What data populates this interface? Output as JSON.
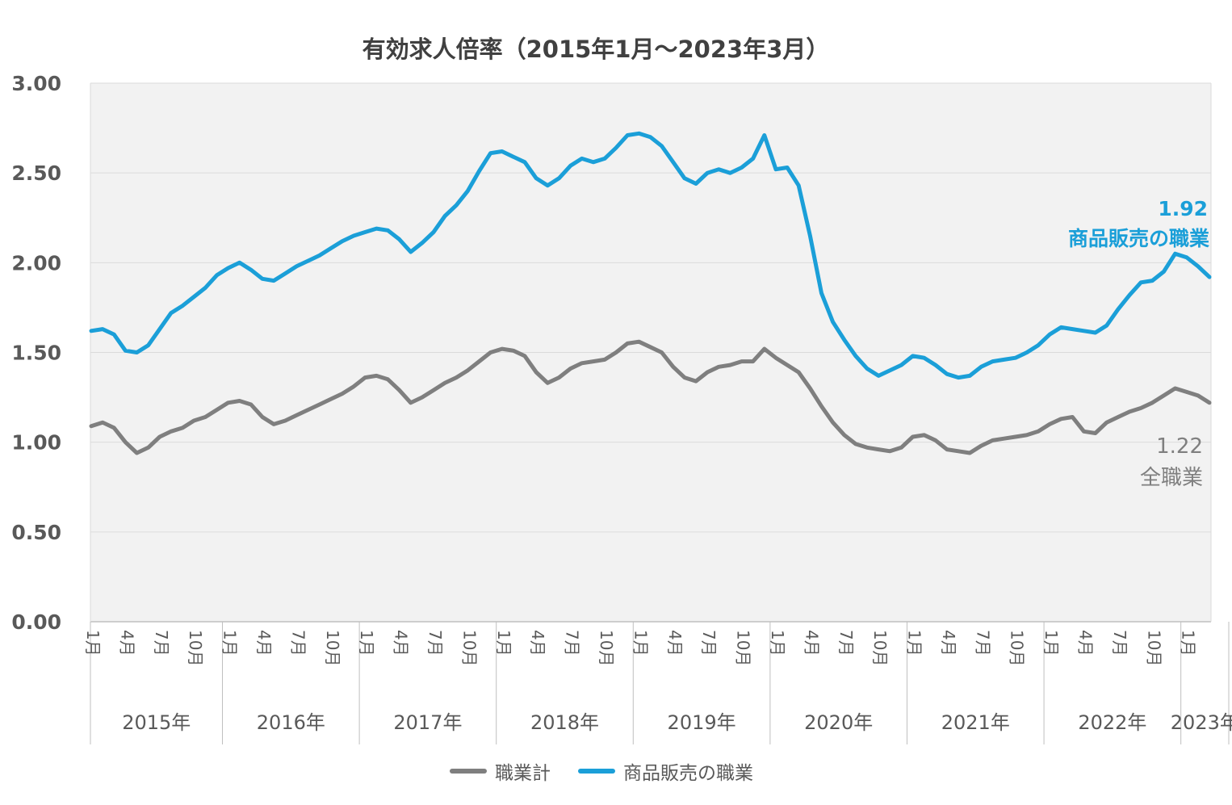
{
  "title": "有効求人倍率（2015年1月～2023年3月）",
  "annotations": {
    "sales_value": "1.92",
    "sales_label": "商品販売の職業",
    "total_value": "1.22",
    "total_label": "全職業"
  },
  "legend": [
    {
      "label": "職業計",
      "color": "#7F7F7F"
    },
    {
      "label": "商品販売の職業",
      "color": "#1B9FD8"
    }
  ],
  "colors": {
    "sales_line": "#1B9FD8",
    "total_line": "#7F7F7F",
    "plot_background": "#F2F2F2",
    "gridline": "#DBDBDB",
    "axis_line": "#BFBFBF",
    "axis_text": "#595959",
    "title_text": "#404040"
  },
  "chart_data": {
    "type": "line",
    "title": "有効求人倍率（2015年1月～2023年3月）",
    "xlabel": "",
    "ylabel": "",
    "ylim": [
      0,
      3
    ],
    "ytick_step": 0.5,
    "ytick_labels": [
      "0.00",
      "0.50",
      "1.00",
      "1.50",
      "2.00",
      "2.50",
      "3.00"
    ],
    "grid": true,
    "legend_position": "bottom",
    "month_tick_labels": [
      "1月",
      "4月",
      "7月",
      "10月"
    ],
    "years": [
      {
        "label": "2015年",
        "months": 12
      },
      {
        "label": "2016年",
        "months": 12
      },
      {
        "label": "2017年",
        "months": 12
      },
      {
        "label": "2018年",
        "months": 12
      },
      {
        "label": "2019年",
        "months": 12
      },
      {
        "label": "2020年",
        "months": 12
      },
      {
        "label": "2021年",
        "months": 12
      },
      {
        "label": "2022年",
        "months": 12
      },
      {
        "label": "2023年",
        "months": 3
      }
    ],
    "series": [
      {
        "name": "職業計",
        "color": "#7F7F7F",
        "values": [
          1.09,
          1.11,
          1.08,
          1.0,
          0.94,
          0.97,
          1.03,
          1.06,
          1.08,
          1.12,
          1.14,
          1.18,
          1.22,
          1.23,
          1.21,
          1.14,
          1.1,
          1.12,
          1.15,
          1.18,
          1.21,
          1.24,
          1.27,
          1.31,
          1.36,
          1.37,
          1.35,
          1.29,
          1.22,
          1.25,
          1.29,
          1.33,
          1.36,
          1.4,
          1.45,
          1.5,
          1.52,
          1.51,
          1.48,
          1.39,
          1.33,
          1.36,
          1.41,
          1.44,
          1.45,
          1.46,
          1.5,
          1.55,
          1.56,
          1.53,
          1.5,
          1.42,
          1.36,
          1.34,
          1.39,
          1.42,
          1.43,
          1.45,
          1.45,
          1.52,
          1.47,
          1.43,
          1.39,
          1.3,
          1.2,
          1.11,
          1.04,
          0.99,
          0.97,
          0.96,
          0.95,
          0.97,
          1.03,
          1.04,
          1.01,
          0.96,
          0.95,
          0.94,
          0.98,
          1.01,
          1.02,
          1.03,
          1.04,
          1.06,
          1.1,
          1.13,
          1.14,
          1.06,
          1.05,
          1.11,
          1.14,
          1.17,
          1.19,
          1.22,
          1.26,
          1.3,
          1.28,
          1.26,
          1.22
        ]
      },
      {
        "name": "商品販売の職業",
        "color": "#1B9FD8",
        "values": [
          1.62,
          1.63,
          1.6,
          1.51,
          1.5,
          1.54,
          1.63,
          1.72,
          1.76,
          1.81,
          1.86,
          1.93,
          1.97,
          2.0,
          1.96,
          1.91,
          1.9,
          1.94,
          1.98,
          2.01,
          2.04,
          2.08,
          2.12,
          2.15,
          2.17,
          2.19,
          2.18,
          2.13,
          2.06,
          2.11,
          2.17,
          2.26,
          2.32,
          2.4,
          2.51,
          2.61,
          2.62,
          2.59,
          2.56,
          2.47,
          2.43,
          2.47,
          2.54,
          2.58,
          2.56,
          2.58,
          2.64,
          2.71,
          2.72,
          2.7,
          2.65,
          2.56,
          2.47,
          2.44,
          2.5,
          2.52,
          2.5,
          2.53,
          2.58,
          2.71,
          2.52,
          2.53,
          2.43,
          2.15,
          1.83,
          1.67,
          1.57,
          1.48,
          1.41,
          1.37,
          1.4,
          1.43,
          1.48,
          1.47,
          1.43,
          1.38,
          1.36,
          1.37,
          1.42,
          1.45,
          1.46,
          1.47,
          1.5,
          1.54,
          1.6,
          1.64,
          1.63,
          1.62,
          1.61,
          1.65,
          1.74,
          1.82,
          1.89,
          1.9,
          1.95,
          2.05,
          2.03,
          1.98,
          1.92
        ]
      }
    ]
  }
}
